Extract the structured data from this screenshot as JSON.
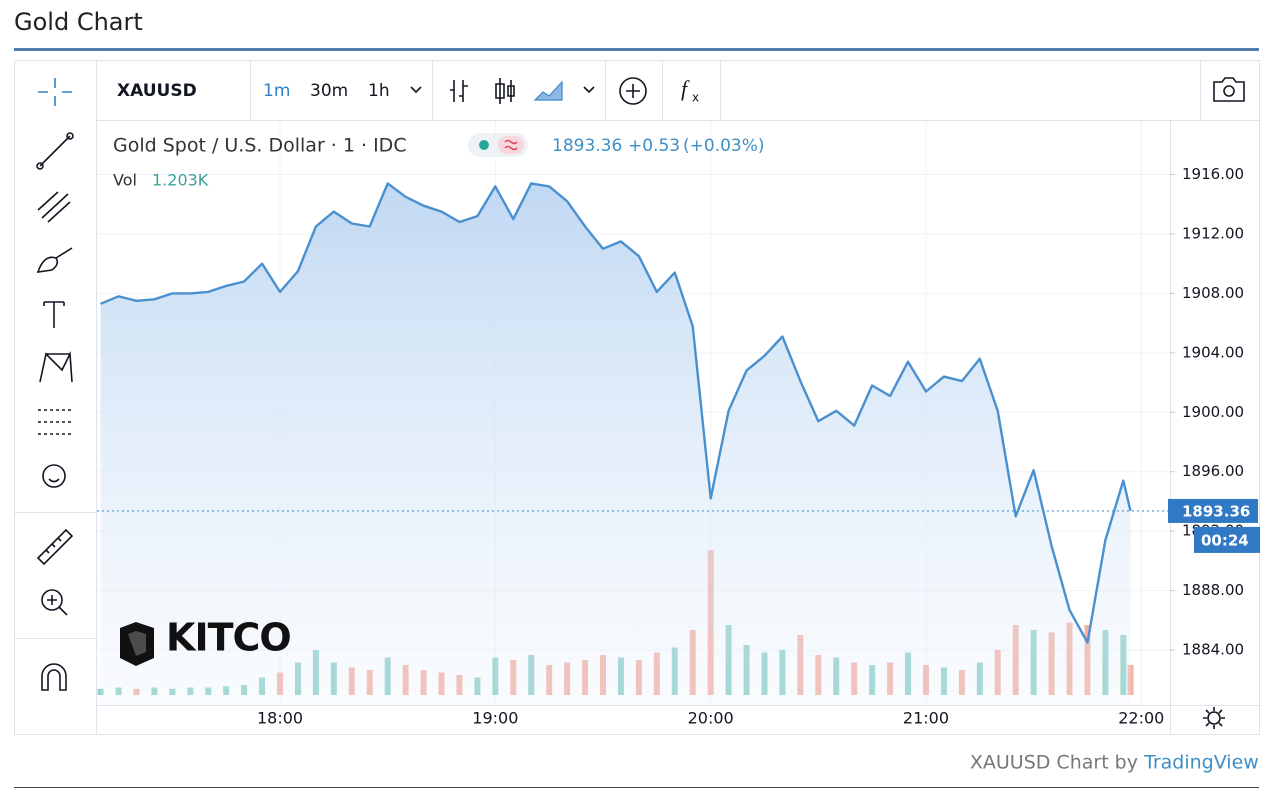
{
  "header": {
    "title": "Gold Chart"
  },
  "toolbar": {
    "symbol": "XAUUSD",
    "intervals": [
      "1m",
      "30m",
      "1h"
    ]
  },
  "chart_data": {
    "type": "line",
    "title": "Gold Spot / U.S. Dollar · 1 · IDC",
    "change": "+0.53",
    "change_percent": "(+0.03%)",
    "volume_title": "Vol",
    "countdown": "00:24",
    "watermark": "KITCO",
    "color": "#4a90d0",
    "x": [
      "17:10",
      "17:15",
      "17:20",
      "17:25",
      "17:30",
      "17:35",
      "17:40",
      "17:45",
      "17:50",
      "17:55",
      "18:00",
      "18:05",
      "18:10",
      "18:15",
      "18:20",
      "18:25",
      "18:30",
      "18:35",
      "18:40",
      "18:45",
      "18:50",
      "18:55",
      "19:00",
      "19:05",
      "19:10",
      "19:15",
      "19:20",
      "19:25",
      "19:30",
      "19:35",
      "19:40",
      "19:45",
      "19:50",
      "19:55",
      "20:00",
      "20:05",
      "20:10",
      "20:15",
      "20:20",
      "20:25",
      "20:30",
      "20:35",
      "20:40",
      "20:45",
      "20:50",
      "20:55",
      "21:00",
      "21:05",
      "21:10",
      "21:15",
      "21:20",
      "21:25",
      "21:30",
      "21:35",
      "21:40",
      "21:45",
      "21:50",
      "21:55",
      "21:57"
    ],
    "values": [
      1907.3,
      1907.8,
      1907.5,
      1907.6,
      1908.0,
      1908.0,
      1908.1,
      1908.5,
      1908.8,
      1910.0,
      1908.1,
      1909.5,
      1912.5,
      1913.5,
      1912.7,
      1912.5,
      1915.4,
      1914.5,
      1913.9,
      1913.5,
      1912.8,
      1913.2,
      1915.2,
      1913.0,
      1915.4,
      1915.2,
      1914.2,
      1912.5,
      1911.0,
      1911.5,
      1910.5,
      1908.1,
      1909.4,
      1905.8,
      1894.2,
      1900.1,
      1902.8,
      1903.8,
      1905.1,
      1902.1,
      1899.4,
      1900.1,
      1899.1,
      1901.8,
      1901.1,
      1903.4,
      1901.4,
      1902.4,
      1902.1,
      1903.6,
      1900.1,
      1893.0,
      1896.1,
      1891.0,
      1886.7,
      1884.5,
      1891.4,
      1895.4,
      1893.36
    ],
    "volume": {
      "values": [
        250,
        300,
        250,
        300,
        250,
        300,
        300,
        350,
        400,
        700,
        900,
        1300,
        1800,
        1300,
        1100,
        1000,
        1500,
        1200,
        1000,
        900,
        800,
        700,
        1500,
        1400,
        1600,
        1200,
        1300,
        1400,
        1600,
        1500,
        1400,
        1700,
        1900,
        2600,
        5800,
        2800,
        2000,
        1700,
        1800,
        2400,
        1600,
        1500,
        1300,
        1200,
        1300,
        1700,
        1200,
        1100,
        1000,
        1300,
        1800,
        2800,
        2600,
        2500,
        2900,
        2800,
        2600,
        2400,
        1203
      ],
      "value_labels": [
        null,
        null,
        null,
        null,
        null,
        null,
        null,
        null,
        null,
        null,
        null,
        null,
        null,
        null,
        null,
        null,
        null,
        null,
        null,
        null,
        null,
        null,
        null,
        null,
        null,
        null,
        null,
        null,
        null,
        null,
        null,
        null,
        null,
        null,
        null,
        null,
        null,
        null,
        null,
        null,
        null,
        null,
        null,
        null,
        null,
        null,
        null,
        null,
        null,
        null,
        null,
        null,
        null,
        null,
        null,
        null,
        null,
        null,
        "1.203K"
      ],
      "up_color": "#8fd0c8",
      "down_color": "#f3b2a6",
      "ylim": [
        0,
        7000
      ]
    },
    "xlim": [
      "17:09",
      "22:08"
    ],
    "xticks": [
      "18:00",
      "19:00",
      "20:00",
      "21:00",
      "22:00"
    ],
    "ylim": [
      1880.3,
      1919.6
    ],
    "yticks": [
      {
        "value": 1884,
        "label": "1884.00"
      },
      {
        "value": 1888,
        "label": "1888.00"
      },
      {
        "value": 1892,
        "label": "1892.00"
      },
      {
        "value": 1896,
        "label": "1896.00"
      },
      {
        "value": 1900,
        "label": "1900.00"
      },
      {
        "value": 1904,
        "label": "1904.00"
      },
      {
        "value": 1908,
        "label": "1908.00"
      },
      {
        "value": 1912,
        "label": "1912.00"
      },
      {
        "value": 1916,
        "label": "1916.00"
      }
    ],
    "grid": true
  },
  "footer": {
    "text": "XAUUSD Chart by",
    "link": "TradingView"
  }
}
